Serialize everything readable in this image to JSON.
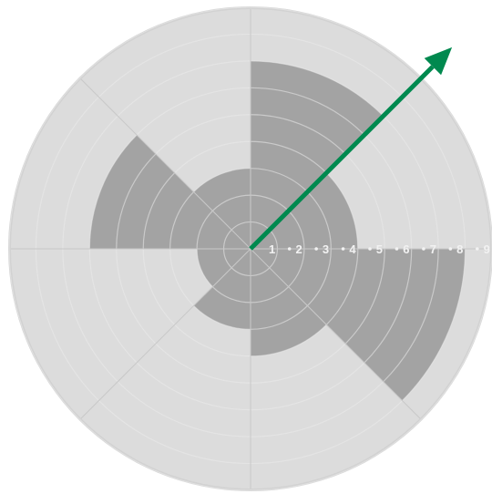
{
  "chart_data": {
    "type": "radar-sector",
    "title": "",
    "rlim": [
      0,
      9
    ],
    "radial_ticks": [
      "1",
      "2",
      "3",
      "4",
      "5",
      "6",
      "7",
      "8",
      "9"
    ],
    "sectors": [
      {
        "direction": "N-NE",
        "value": 7
      },
      {
        "direction": "NE-E",
        "value": 4
      },
      {
        "direction": "E-SE",
        "value": 8
      },
      {
        "direction": "SE-S",
        "value": 4
      },
      {
        "direction": "S-SW",
        "value": 3
      },
      {
        "direction": "SW-W",
        "value": 2
      },
      {
        "direction": "W-NW",
        "value": 6
      },
      {
        "direction": "NW-N",
        "value": 3
      }
    ],
    "arrow": {
      "direction_deg": 45,
      "magnitude": 9
    }
  },
  "colors": {
    "background": "#dcdcdc",
    "rim": "#d2d2d2",
    "sector_fill": "#a3a3a3",
    "ring_line": "#ebebeb",
    "arrow": "#00894f"
  }
}
